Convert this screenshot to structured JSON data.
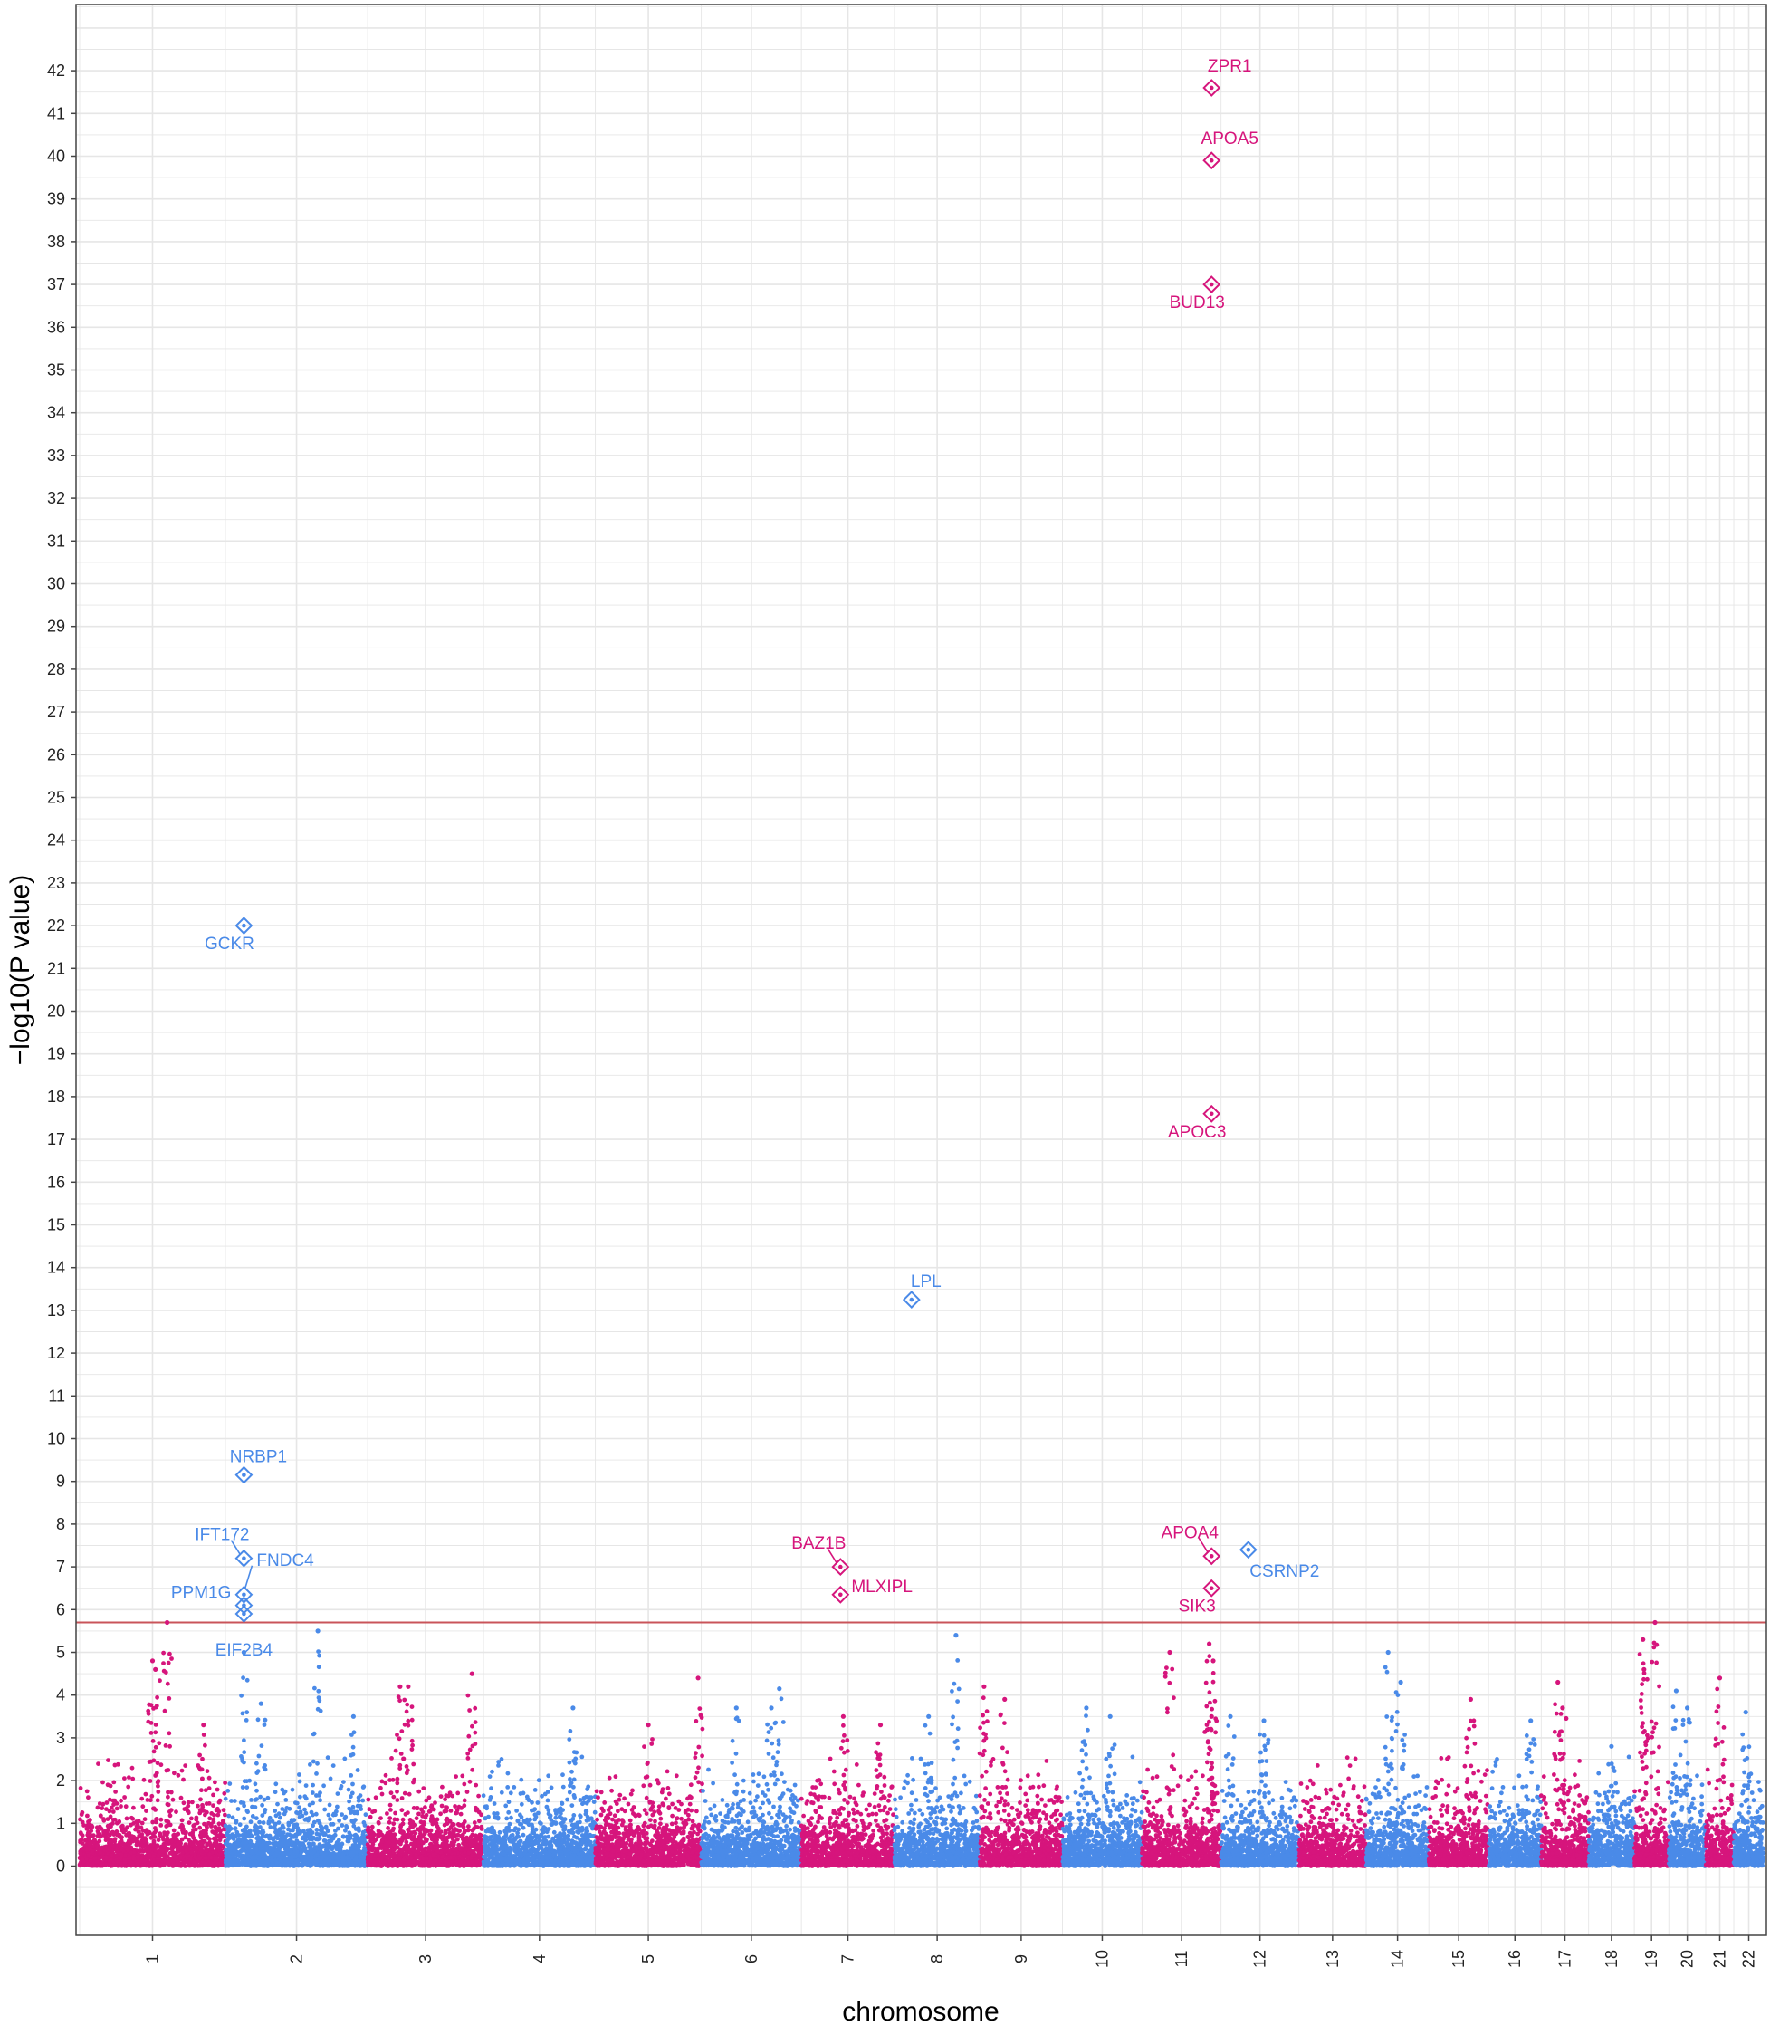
{
  "chart_data": {
    "type": "scatter",
    "title": "",
    "xlabel": "chromosome",
    "ylabel": "−log10(P value)",
    "ylim": [
      -1.0,
      43.7
    ],
    "y_ticks": [
      0,
      1,
      2,
      3,
      4,
      5,
      6,
      7,
      8,
      9,
      10,
      11,
      12,
      13,
      14,
      15,
      16,
      17,
      18,
      19,
      20,
      21,
      22,
      23,
      24,
      25,
      26,
      27,
      28,
      29,
      30,
      31,
      32,
      33,
      34,
      35,
      36,
      37,
      38,
      39,
      40,
      41,
      42
    ],
    "grid": true,
    "significance_threshold": 5.7,
    "colors": {
      "magenta": "#d6157c",
      "blue": "#4a8ae8",
      "threshold": "#c9545a",
      "grid": "#e6e6e6",
      "axis": "#444444"
    },
    "chromosomes": [
      {
        "label": "1",
        "size": 249,
        "color": "magenta",
        "peaks": [
          [
            0.6,
            5.7
          ],
          [
            0.5,
            4.8
          ],
          [
            0.52,
            4.6
          ],
          [
            0.85,
            3.3
          ]
        ]
      },
      {
        "label": "2",
        "size": 243,
        "color": "blue",
        "peaks": [
          [
            0.13,
            5.0
          ],
          [
            0.25,
            3.8
          ],
          [
            0.65,
            5.5
          ],
          [
            0.9,
            3.5
          ]
        ]
      },
      {
        "label": "3",
        "size": 198,
        "color": "magenta",
        "peaks": [
          [
            0.28,
            4.2
          ],
          [
            0.35,
            4.2
          ],
          [
            0.9,
            4.5
          ]
        ]
      },
      {
        "label": "4",
        "size": 191,
        "color": "blue",
        "peaks": [
          [
            0.8,
            3.7
          ]
        ]
      },
      {
        "label": "5",
        "size": 181,
        "color": "magenta",
        "peaks": [
          [
            0.97,
            4.4
          ],
          [
            0.5,
            3.3
          ]
        ]
      },
      {
        "label": "6",
        "size": 171,
        "color": "blue",
        "peaks": [
          [
            0.35,
            3.7
          ],
          [
            0.78,
            4.15
          ],
          [
            0.7,
            3.7
          ]
        ]
      },
      {
        "label": "7",
        "size": 159,
        "color": "magenta",
        "peaks": [
          [
            0.45,
            3.5
          ],
          [
            0.85,
            3.3
          ]
        ]
      },
      {
        "label": "8",
        "size": 146,
        "color": "blue",
        "peaks": [
          [
            0.72,
            5.4
          ],
          [
            0.4,
            3.5
          ]
        ]
      },
      {
        "label": "9",
        "size": 141,
        "color": "magenta",
        "peaks": [
          [
            0.05,
            4.2
          ],
          [
            0.3,
            3.9
          ]
        ]
      },
      {
        "label": "10",
        "size": 136,
        "color": "blue",
        "peaks": [
          [
            0.3,
            3.7
          ],
          [
            0.6,
            3.5
          ]
        ]
      },
      {
        "label": "11",
        "size": 135,
        "color": "magenta",
        "peaks": [
          [
            0.35,
            5.0
          ],
          [
            0.85,
            5.2
          ],
          [
            0.9,
            4.8
          ],
          [
            0.88,
            3.5
          ]
        ]
      },
      {
        "label": "12",
        "size": 133,
        "color": "blue",
        "peaks": [
          [
            0.12,
            3.5
          ],
          [
            0.55,
            3.4
          ]
        ]
      },
      {
        "label": "13",
        "size": 115,
        "color": "magenta",
        "peaks": []
      },
      {
        "label": "14",
        "size": 107,
        "color": "blue",
        "peaks": [
          [
            0.35,
            5.0
          ],
          [
            0.55,
            4.3
          ]
        ]
      },
      {
        "label": "15",
        "size": 102,
        "color": "magenta",
        "peaks": [
          [
            0.7,
            3.9
          ]
        ]
      },
      {
        "label": "16",
        "size": 90,
        "color": "blue",
        "peaks": [
          [
            0.8,
            3.4
          ]
        ]
      },
      {
        "label": "17",
        "size": 81,
        "color": "magenta",
        "peaks": [
          [
            0.35,
            4.3
          ],
          [
            0.45,
            3.7
          ]
        ]
      },
      {
        "label": "18",
        "size": 78,
        "color": "blue",
        "peaks": [
          [
            0.5,
            2.8
          ]
        ]
      },
      {
        "label": "19",
        "size": 59,
        "color": "magenta",
        "peaks": [
          [
            0.25,
            5.3
          ],
          [
            0.28,
            4.6
          ],
          [
            0.6,
            5.7
          ]
        ]
      },
      {
        "label": "20",
        "size": 63,
        "color": "blue",
        "peaks": [
          [
            0.2,
            4.1
          ],
          [
            0.5,
            3.7
          ]
        ]
      },
      {
        "label": "21",
        "size": 48,
        "color": "magenta",
        "peaks": [
          [
            0.5,
            4.4
          ]
        ]
      },
      {
        "label": "22",
        "size": 51,
        "color": "blue",
        "peaks": [
          [
            0.4,
            3.6
          ]
        ]
      }
    ],
    "highlighted": [
      {
        "gene": "ZPR1",
        "chromosome": "11",
        "pos": 0.88,
        "value": 41.6,
        "color": "magenta",
        "label_side": "above"
      },
      {
        "gene": "APOA5",
        "chromosome": "11",
        "pos": 0.88,
        "value": 39.9,
        "color": "magenta",
        "label_side": "above"
      },
      {
        "gene": "BUD13",
        "chromosome": "11",
        "pos": 0.88,
        "value": 37.0,
        "color": "magenta",
        "label_side": "below-left"
      },
      {
        "gene": "GCKR",
        "chromosome": "2",
        "pos": 0.13,
        "value": 22.0,
        "color": "blue",
        "label_side": "below-left"
      },
      {
        "gene": "APOC3",
        "chromosome": "11",
        "pos": 0.88,
        "value": 17.6,
        "color": "magenta",
        "label_side": "below-left"
      },
      {
        "gene": "LPL",
        "chromosome": "8",
        "pos": 0.2,
        "value": 13.25,
        "color": "blue",
        "label_side": "above-right"
      },
      {
        "gene": "NRBP1",
        "chromosome": "2",
        "pos": 0.13,
        "value": 9.15,
        "color": "blue",
        "label_side": "above-right"
      },
      {
        "gene": "IFT172",
        "chromosome": "2",
        "pos": 0.13,
        "value": 7.2,
        "color": "blue",
        "label_side": "above-left"
      },
      {
        "gene": "FNDC4",
        "chromosome": "2",
        "pos": 0.13,
        "value": 6.35,
        "color": "blue",
        "label_side": "right-leader"
      },
      {
        "gene": "PPM1G",
        "chromosome": "2",
        "pos": 0.13,
        "value": 6.1,
        "color": "blue",
        "label_side": "left"
      },
      {
        "gene": "EIF2B4",
        "chromosome": "2",
        "pos": 0.13,
        "value": 5.9,
        "color": "blue",
        "label_side": "below"
      },
      {
        "gene": "BAZ1B",
        "chromosome": "7",
        "pos": 0.42,
        "value": 7.0,
        "color": "magenta",
        "label_side": "above-left"
      },
      {
        "gene": "MLXIPL",
        "chromosome": "7",
        "pos": 0.42,
        "value": 6.35,
        "color": "magenta",
        "label_side": "right"
      },
      {
        "gene": "APOA4",
        "chromosome": "11",
        "pos": 0.88,
        "value": 7.25,
        "color": "magenta",
        "label_side": "above-left"
      },
      {
        "gene": "SIK3",
        "chromosome": "11",
        "pos": 0.88,
        "value": 6.5,
        "color": "magenta",
        "label_side": "below-left"
      },
      {
        "gene": "CSRNP2",
        "chromosome": "12",
        "pos": 0.35,
        "value": 7.4,
        "color": "blue",
        "label_side": "below-right"
      }
    ]
  }
}
